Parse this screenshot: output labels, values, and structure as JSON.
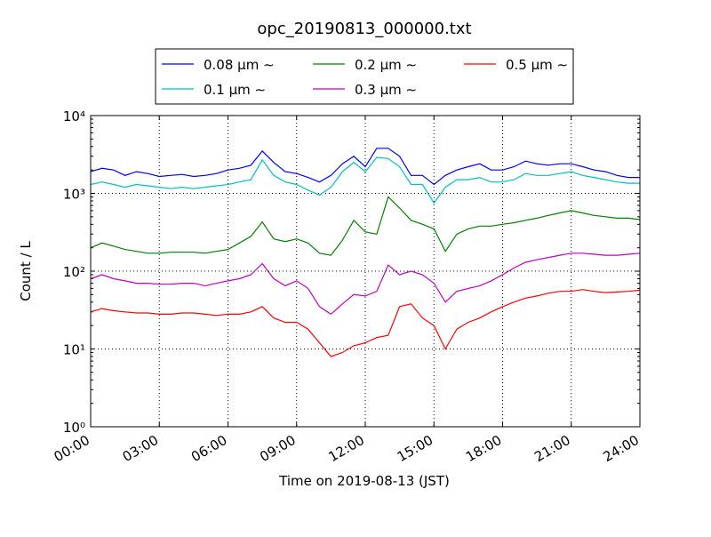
{
  "chart_data": {
    "type": "line",
    "title": "opc_20190813_000000.txt",
    "x_label": "Time on 2019-08-13 (JST)",
    "y_label": "Count / L",
    "log_scale": true,
    "grid": true,
    "xlim": [
      "00:00",
      "24:00"
    ],
    "xticks": [
      "00:00",
      "03:00",
      "06:00",
      "09:00",
      "12:00",
      "15:00",
      "18:00",
      "21:00",
      "24:00"
    ],
    "ylim": [
      1,
      10000
    ],
    "yticks": [
      {
        "value": 1,
        "label": "10⁰"
      },
      {
        "value": 10,
        "label": "10¹"
      },
      {
        "value": 100,
        "label": "10²"
      },
      {
        "value": 1000,
        "label": "10³"
      },
      {
        "value": 10000,
        "label": "10⁴"
      }
    ],
    "x": [
      "00:00",
      "00:30",
      "01:00",
      "01:30",
      "02:00",
      "02:30",
      "03:00",
      "03:30",
      "04:00",
      "04:30",
      "05:00",
      "05:30",
      "06:00",
      "06:30",
      "07:00",
      "07:30",
      "08:00",
      "08:30",
      "09:00",
      "09:30",
      "10:00",
      "10:30",
      "11:00",
      "11:30",
      "12:00",
      "12:30",
      "13:00",
      "13:30",
      "14:00",
      "14:30",
      "15:00",
      "15:30",
      "16:00",
      "16:30",
      "17:00",
      "17:30",
      "18:00",
      "18:30",
      "19:00",
      "19:30",
      "20:00",
      "20:30",
      "21:00",
      "21:30",
      "22:00",
      "22:30",
      "23:00",
      "23:30",
      "24:00"
    ],
    "series": [
      {
        "name": "0.08 μm ∼",
        "color": "#0000ff",
        "values": [
          1900,
          2100,
          2000,
          1700,
          1900,
          1800,
          1650,
          1700,
          1750,
          1650,
          1700,
          1800,
          2000,
          2100,
          2300,
          3500,
          2500,
          1900,
          1800,
          1600,
          1400,
          1700,
          2400,
          3000,
          2200,
          3800,
          3800,
          3000,
          1700,
          1700,
          1300,
          1700,
          2000,
          2200,
          2400,
          2000,
          2000,
          2200,
          2600,
          2400,
          2300,
          2400,
          2400,
          2200,
          2000,
          1900,
          1700,
          1600,
          1600
        ]
      },
      {
        "name": "0.1 μm ∼",
        "color": "#00bfbf",
        "values": [
          1300,
          1400,
          1300,
          1200,
          1300,
          1250,
          1200,
          1150,
          1200,
          1150,
          1200,
          1250,
          1300,
          1400,
          1500,
          2700,
          1700,
          1400,
          1300,
          1100,
          950,
          1200,
          1900,
          2500,
          1900,
          2900,
          2800,
          2200,
          1300,
          1300,
          750,
          1200,
          1500,
          1500,
          1600,
          1400,
          1400,
          1500,
          1800,
          1700,
          1700,
          1800,
          1900,
          1700,
          1600,
          1500,
          1400,
          1350,
          1350
        ]
      },
      {
        "name": "0.2 μm ∼",
        "color": "#008000",
        "values": [
          200,
          230,
          210,
          190,
          180,
          170,
          170,
          175,
          175,
          175,
          170,
          180,
          190,
          230,
          280,
          430,
          260,
          240,
          260,
          230,
          170,
          160,
          250,
          450,
          320,
          300,
          900,
          650,
          450,
          400,
          350,
          180,
          300,
          350,
          380,
          380,
          400,
          420,
          450,
          480,
          520,
          560,
          600,
          560,
          520,
          500,
          480,
          480,
          460
        ]
      },
      {
        "name": "0.3 μm ∼",
        "color": "#bf00bf",
        "values": [
          80,
          90,
          80,
          75,
          70,
          70,
          68,
          68,
          70,
          70,
          65,
          70,
          75,
          80,
          90,
          125,
          80,
          65,
          75,
          60,
          35,
          28,
          38,
          50,
          48,
          55,
          120,
          90,
          100,
          90,
          70,
          40,
          55,
          60,
          65,
          75,
          90,
          110,
          130,
          140,
          150,
          160,
          170,
          170,
          165,
          160,
          160,
          165,
          170
        ]
      },
      {
        "name": "0.5 μm ∼",
        "color": "#ff0000",
        "values": [
          30,
          33,
          31,
          30,
          29,
          29,
          28,
          28,
          29,
          29,
          28,
          27,
          28,
          28,
          30,
          35,
          25,
          22,
          22,
          18,
          12,
          8,
          9,
          11,
          12,
          14,
          15,
          35,
          38,
          25,
          20,
          10,
          18,
          22,
          25,
          30,
          35,
          40,
          45,
          48,
          52,
          55,
          55,
          58,
          55,
          53,
          54,
          55,
          57
        ]
      }
    ]
  }
}
